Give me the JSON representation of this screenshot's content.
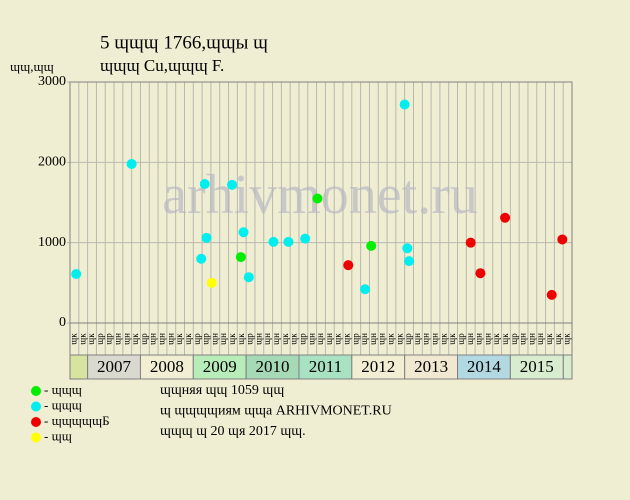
{
  "chart_data": {
    "type": "scatter",
    "title_lines": [
      "5 ɰɰɰ 1766,ɰɰы ɰ",
      "ɰɰɰ Cu,ɰɰɰ F."
    ],
    "y_label": "ɰɰ,ɰɰ",
    "watermark": "arhivmonet.ru",
    "xlim": [
      0,
      57
    ],
    "ylim": [
      0,
      3000
    ],
    "yticks": [
      0,
      1000,
      2000,
      3000
    ],
    "grid": true,
    "column_labels": [
      "ɰк",
      "ɰк",
      "ɰк",
      "ɰр",
      "ɰр",
      "ɰн",
      "ɰн",
      "ɰк",
      "ɰр",
      "ɰн",
      "ɰн",
      "ɰн",
      "ɰк",
      "ɰк",
      "ɰр",
      "ɰр",
      "ɰн",
      "ɰн",
      "ɰк",
      "ɰк",
      "ɰр",
      "ɰн",
      "ɰн",
      "ɰн",
      "ɰк",
      "ɰк",
      "ɰр",
      "ɰн",
      "ɰн",
      "ɰн",
      "ɰк",
      "ɰк",
      "ɰр",
      "ɰн",
      "ɰн",
      "ɰн",
      "ɰк",
      "ɰк",
      "ɰр",
      "ɰн",
      "ɰн",
      "ɰн",
      "ɰк",
      "ɰк",
      "ɰр",
      "ɰн",
      "ɰн",
      "ɰн",
      "ɰк",
      "ɰк",
      "ɰр",
      "ɰн",
      "ɰн",
      "ɰн",
      "ɰк",
      "ɰк",
      "ɰк"
    ],
    "years": [
      {
        "label": "2007",
        "start": 2,
        "span": 6,
        "color": "#d9d9cf"
      },
      {
        "label": "2008",
        "start": 8,
        "span": 6,
        "color": "#f2eed3"
      },
      {
        "label": "2009",
        "start": 14,
        "span": 6,
        "color": "#b8ecb8"
      },
      {
        "label": "2010",
        "start": 20,
        "span": 6,
        "color": "#a6d9b5"
      },
      {
        "label": "2011",
        "start": 26,
        "span": 6,
        "color": "#a8e2c2"
      },
      {
        "label": "2012",
        "start": 32,
        "span": 6,
        "color": "#f2eed3"
      },
      {
        "label": "2013",
        "start": 38,
        "span": 6,
        "color": "#f0e8d0"
      },
      {
        "label": "2014",
        "start": 44,
        "span": 6,
        "color": "#b2d9e2"
      },
      {
        "label": "2015",
        "start": 50,
        "span": 6,
        "color": "#d8ecd0"
      }
    ],
    "series": [
      {
        "name": "- ɰɰɰ",
        "color": "#00ee00",
        "x": [
          19.4,
          28.1,
          34.2
        ],
        "values": [
          820,
          1550,
          960
        ]
      },
      {
        "name": "- ɰɰɰ",
        "color": "#00eeee",
        "x": [
          0.7,
          7.0,
          15.3,
          15.5,
          14.9,
          18.4,
          19.7,
          20.3,
          23.1,
          24.8,
          26.7,
          33.5,
          38.0,
          38.3,
          38.5
        ],
        "values": [
          610,
          1980,
          1730,
          1060,
          800,
          1720,
          1130,
          570,
          1010,
          1010,
          1050,
          420,
          2720,
          930,
          770
        ]
      },
      {
        "name": "- ɰɰɰɰɰБ",
        "color": "#ee0000",
        "x": [
          31.6,
          45.5,
          46.6,
          49.4,
          54.7,
          55.9
        ],
        "values": [
          720,
          1000,
          620,
          1310,
          350,
          1040
        ]
      },
      {
        "name": "- ɰɰ",
        "color": "#ffff00",
        "x": [
          16.1
        ],
        "values": [
          500
        ]
      }
    ],
    "notes": [
      "ɰɰняя ɰɰ 1059 ɰɰ",
      "ɰ ɰɰɰɰиям ɰɰа ARHIVMONET.RU",
      "ɰɰɰ ɰ 20 ɰя 2017 ɰɰ."
    ]
  }
}
